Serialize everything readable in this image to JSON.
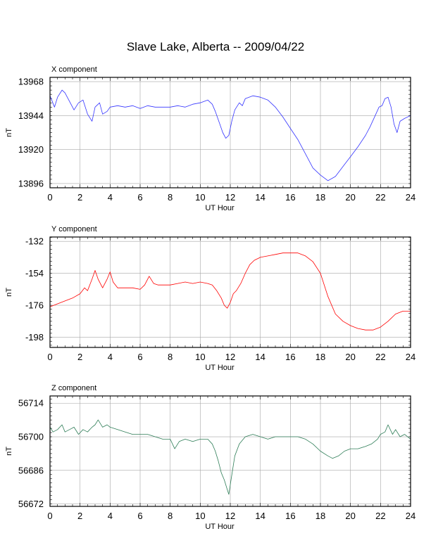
{
  "title": "Slave Lake, Alberta -- 2009/04/22",
  "chart_data": [
    {
      "type": "line",
      "panel_title": "X component",
      "xlabel": "UT Hour",
      "ylabel": "nT",
      "xlim": [
        0,
        24
      ],
      "ylim": [
        13893,
        13971
      ],
      "xticks": [
        0,
        2,
        4,
        6,
        8,
        10,
        12,
        14,
        16,
        18,
        20,
        22,
        24
      ],
      "yticks": [
        13896,
        13920,
        13944,
        13968
      ],
      "grid": true,
      "color": "#3333ff",
      "x": [
        0,
        0.3,
        0.5,
        0.8,
        1.0,
        1.3,
        1.6,
        1.9,
        2.2,
        2.5,
        2.8,
        3.0,
        3.3,
        3.5,
        3.8,
        4.0,
        4.5,
        5.0,
        5.5,
        6.0,
        6.5,
        7.0,
        7.5,
        8.0,
        8.5,
        9.0,
        9.5,
        10.0,
        10.5,
        10.8,
        11.0,
        11.3,
        11.5,
        11.7,
        11.9,
        12.1,
        12.3,
        12.6,
        12.8,
        13.0,
        13.5,
        14.0,
        14.5,
        15.0,
        15.5,
        16.0,
        16.5,
        17.0,
        17.5,
        18.0,
        18.5,
        19.0,
        19.5,
        20.0,
        20.5,
        21.0,
        21.3,
        21.6,
        21.9,
        22.1,
        22.3,
        22.5,
        22.7,
        22.9,
        23.1,
        23.3,
        23.6,
        24.0
      ],
      "y": [
        13958,
        13950,
        13957,
        13962,
        13960,
        13954,
        13948,
        13953,
        13955,
        13945,
        13940,
        13950,
        13953,
        13945,
        13947,
        13950,
        13951,
        13950,
        13951,
        13949,
        13951,
        13950,
        13950,
        13950,
        13951,
        13950,
        13952,
        13953,
        13955,
        13952,
        13947,
        13938,
        13932,
        13928,
        13930,
        13940,
        13948,
        13953,
        13951,
        13956,
        13958,
        13957,
        13955,
        13950,
        13943,
        13935,
        13927,
        13917,
        13907,
        13902,
        13898,
        13901,
        13908,
        13915,
        13922,
        13930,
        13936,
        13943,
        13950,
        13951,
        13956,
        13957,
        13950,
        13938,
        13932,
        13940,
        13942,
        13944
      ]
    },
    {
      "type": "line",
      "panel_title": "Y component",
      "xlabel": "UT Hour",
      "ylabel": "nT",
      "xlim": [
        0,
        24
      ],
      "ylim": [
        -205,
        -129
      ],
      "xticks": [
        0,
        2,
        4,
        6,
        8,
        10,
        12,
        14,
        16,
        18,
        20,
        22,
        24
      ],
      "yticks": [
        -132,
        -154,
        -176,
        -198
      ],
      "grid": true,
      "color": "#ff0000",
      "x": [
        0,
        0.5,
        1.0,
        1.5,
        2.0,
        2.3,
        2.5,
        2.8,
        3.0,
        3.2,
        3.5,
        3.8,
        4.0,
        4.2,
        4.5,
        5.0,
        5.5,
        6.0,
        6.3,
        6.6,
        6.9,
        7.2,
        7.5,
        8.0,
        8.5,
        9.0,
        9.5,
        10.0,
        10.5,
        10.8,
        11.1,
        11.4,
        11.6,
        11.8,
        12.0,
        12.2,
        12.4,
        12.7,
        13.0,
        13.3,
        13.6,
        14.0,
        14.5,
        15.0,
        15.5,
        16.0,
        16.5,
        17.0,
        17.5,
        18.0,
        18.5,
        19.0,
        19.5,
        20.0,
        20.5,
        21.0,
        21.5,
        22.0,
        22.5,
        23.0,
        23.5,
        24.0
      ],
      "y": [
        -177,
        -175,
        -173,
        -171,
        -168,
        -164,
        -166,
        -158,
        -152,
        -158,
        -164,
        -158,
        -153,
        -160,
        -164,
        -164,
        -164,
        -165,
        -162,
        -156,
        -161,
        -162,
        -162,
        -162,
        -161,
        -160,
        -161,
        -160,
        -161,
        -162,
        -166,
        -171,
        -176,
        -178,
        -174,
        -168,
        -166,
        -161,
        -154,
        -148,
        -145,
        -143,
        -142,
        -141,
        -140,
        -140,
        -140,
        -142,
        -146,
        -154,
        -170,
        -182,
        -187,
        -190,
        -192,
        -193,
        -193,
        -191,
        -187,
        -182,
        -180,
        -180
      ]
    },
    {
      "type": "line",
      "panel_title": "Z component",
      "xlabel": "UT Hour",
      "ylabel": "nT",
      "xlim": [
        0,
        24
      ],
      "ylim": [
        56671,
        56717
      ],
      "xticks": [
        0,
        2,
        4,
        6,
        8,
        10,
        12,
        14,
        16,
        18,
        20,
        22,
        24
      ],
      "yticks": [
        56672,
        56686,
        56700,
        56714
      ],
      "grid": true,
      "color": "#2e7d57",
      "x": [
        0,
        0.2,
        0.5,
        0.8,
        1.0,
        1.3,
        1.6,
        1.9,
        2.2,
        2.5,
        2.8,
        3.0,
        3.2,
        3.5,
        3.8,
        4.0,
        4.5,
        5.0,
        5.5,
        6.0,
        6.5,
        7.0,
        7.5,
        8.0,
        8.3,
        8.6,
        9.0,
        9.5,
        10.0,
        10.5,
        10.8,
        11.0,
        11.2,
        11.4,
        11.6,
        11.8,
        11.9,
        12.1,
        12.3,
        12.6,
        13.0,
        13.5,
        14.0,
        14.5,
        15.0,
        15.5,
        16.0,
        16.5,
        17.0,
        17.5,
        18.0,
        18.5,
        18.8,
        19.2,
        19.6,
        20.0,
        20.5,
        21.0,
        21.4,
        21.8,
        22.0,
        22.3,
        22.5,
        22.8,
        23.0,
        23.3,
        23.6,
        24.0
      ],
      "y": [
        56704,
        56702,
        56703,
        56705,
        56702,
        56703,
        56704,
        56701,
        56703,
        56702,
        56704,
        56705,
        56707,
        56704,
        56705,
        56704,
        56703,
        56702,
        56701,
        56701,
        56701,
        56700,
        56699,
        56699,
        56695,
        56698,
        56699,
        56698,
        56699,
        56699,
        56697,
        56694,
        56690,
        56685,
        56682,
        56678,
        56676,
        56684,
        56692,
        56697,
        56700,
        56701,
        56700,
        56699,
        56700,
        56700,
        56700,
        56700,
        56699,
        56697,
        56694,
        56692,
        56691,
        56692,
        56694,
        56695,
        56695,
        56696,
        56697,
        56699,
        56701,
        56702,
        56705,
        56701,
        56703,
        56700,
        56701,
        56699
      ]
    }
  ]
}
